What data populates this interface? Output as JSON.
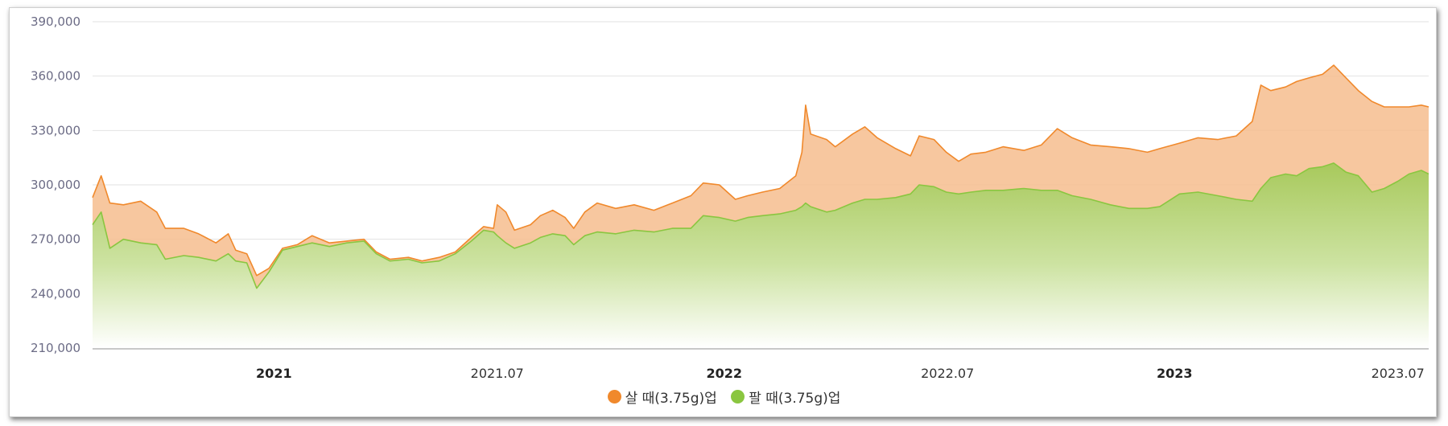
{
  "colors": {
    "buy": "#f0892c",
    "sell": "#8ac640",
    "grid": "#e2e2e2"
  },
  "legend": {
    "buy_label": "살 때(3.75g)업",
    "sell_label": "팔 때(3.75g)업"
  },
  "chart_data": {
    "type": "area",
    "ylim": [
      210000,
      390000
    ],
    "yticks": [
      "390,000",
      "360,000",
      "330,000",
      "300,000",
      "270,000",
      "240,000",
      "210,000"
    ],
    "ytick_values": [
      390000,
      360000,
      330000,
      300000,
      270000,
      240000,
      210000
    ],
    "xlim": [
      "2020-08-07",
      "2023-07-26"
    ],
    "xticks": [
      {
        "label": "2021",
        "date": "2021-01-01",
        "major": true
      },
      {
        "label": "2021.07",
        "date": "2021-07-01",
        "major": false
      },
      {
        "label": "2022",
        "date": "2022-01-01",
        "major": true
      },
      {
        "label": "2022.07",
        "date": "2022-07-01",
        "major": false
      },
      {
        "label": "2023",
        "date": "2023-01-01",
        "major": true
      },
      {
        "label": "2023.07",
        "date": "2023-07-01",
        "major": false
      }
    ],
    "grid": true,
    "legend_position": "bottom",
    "series": [
      {
        "name": "살 때(3.75g)업",
        "points": [
          [
            "2020-08-07",
            293000
          ],
          [
            "2020-08-14",
            305000
          ],
          [
            "2020-08-21",
            290000
          ],
          [
            "2020-09-01",
            289000
          ],
          [
            "2020-09-15",
            291000
          ],
          [
            "2020-09-28",
            285000
          ],
          [
            "2020-10-05",
            276000
          ],
          [
            "2020-10-20",
            276000
          ],
          [
            "2020-11-01",
            273000
          ],
          [
            "2020-11-15",
            268000
          ],
          [
            "2020-11-25",
            273000
          ],
          [
            "2020-12-01",
            264000
          ],
          [
            "2020-12-10",
            262000
          ],
          [
            "2020-12-18",
            250000
          ],
          [
            "2020-12-28",
            254000
          ],
          [
            "2021-01-08",
            265000
          ],
          [
            "2021-01-20",
            267000
          ],
          [
            "2021-02-01",
            272000
          ],
          [
            "2021-02-15",
            268000
          ],
          [
            "2021-03-01",
            269000
          ],
          [
            "2021-03-15",
            270000
          ],
          [
            "2021-03-25",
            263000
          ],
          [
            "2021-04-05",
            259000
          ],
          [
            "2021-04-20",
            260000
          ],
          [
            "2021-05-01",
            258000
          ],
          [
            "2021-05-15",
            260000
          ],
          [
            "2021-05-28",
            263000
          ],
          [
            "2021-06-10",
            271000
          ],
          [
            "2021-06-20",
            277000
          ],
          [
            "2021-06-28",
            276000
          ],
          [
            "2021-07-01",
            289000
          ],
          [
            "2021-07-08",
            285000
          ],
          [
            "2021-07-15",
            275000
          ],
          [
            "2021-07-28",
            278000
          ],
          [
            "2021-08-05",
            283000
          ],
          [
            "2021-08-15",
            286000
          ],
          [
            "2021-08-25",
            282000
          ],
          [
            "2021-09-01",
            276000
          ],
          [
            "2021-09-10",
            285000
          ],
          [
            "2021-09-20",
            290000
          ],
          [
            "2021-10-05",
            287000
          ],
          [
            "2021-10-20",
            289000
          ],
          [
            "2021-11-05",
            286000
          ],
          [
            "2021-11-20",
            290000
          ],
          [
            "2021-12-05",
            294000
          ],
          [
            "2021-12-15",
            301000
          ],
          [
            "2021-12-28",
            300000
          ],
          [
            "2022-01-10",
            292000
          ],
          [
            "2022-01-20",
            294000
          ],
          [
            "2022-02-01",
            296000
          ],
          [
            "2022-02-15",
            298000
          ],
          [
            "2022-02-28",
            305000
          ],
          [
            "2022-03-05",
            318000
          ],
          [
            "2022-03-08",
            344000
          ],
          [
            "2022-03-12",
            328000
          ],
          [
            "2022-03-25",
            325000
          ],
          [
            "2022-04-01",
            321000
          ],
          [
            "2022-04-15",
            328000
          ],
          [
            "2022-04-25",
            332000
          ],
          [
            "2022-05-05",
            326000
          ],
          [
            "2022-05-20",
            320000
          ],
          [
            "2022-06-01",
            316000
          ],
          [
            "2022-06-08",
            327000
          ],
          [
            "2022-06-20",
            325000
          ],
          [
            "2022-06-30",
            318000
          ],
          [
            "2022-07-10",
            313000
          ],
          [
            "2022-07-20",
            317000
          ],
          [
            "2022-08-01",
            318000
          ],
          [
            "2022-08-15",
            321000
          ],
          [
            "2022-09-01",
            319000
          ],
          [
            "2022-09-15",
            322000
          ],
          [
            "2022-09-28",
            331000
          ],
          [
            "2022-10-10",
            326000
          ],
          [
            "2022-10-25",
            322000
          ],
          [
            "2022-11-10",
            321000
          ],
          [
            "2022-11-25",
            320000
          ],
          [
            "2022-12-10",
            318000
          ],
          [
            "2022-12-20",
            320000
          ],
          [
            "2023-01-05",
            323000
          ],
          [
            "2023-01-20",
            326000
          ],
          [
            "2023-02-05",
            325000
          ],
          [
            "2023-02-20",
            327000
          ],
          [
            "2023-03-05",
            335000
          ],
          [
            "2023-03-12",
            355000
          ],
          [
            "2023-03-20",
            352000
          ],
          [
            "2023-04-01",
            354000
          ],
          [
            "2023-04-10",
            357000
          ],
          [
            "2023-04-20",
            359000
          ],
          [
            "2023-05-01",
            361000
          ],
          [
            "2023-05-10",
            366000
          ],
          [
            "2023-05-20",
            359000
          ],
          [
            "2023-05-30",
            352000
          ],
          [
            "2023-06-10",
            346000
          ],
          [
            "2023-06-20",
            343000
          ],
          [
            "2023-07-01",
            343000
          ],
          [
            "2023-07-10",
            343000
          ],
          [
            "2023-07-20",
            344000
          ],
          [
            "2023-07-26",
            343000
          ]
        ]
      },
      {
        "name": "팔 때(3.75g)업",
        "points": [
          [
            "2020-08-07",
            278000
          ],
          [
            "2020-08-14",
            285000
          ],
          [
            "2020-08-21",
            265000
          ],
          [
            "2020-09-01",
            270000
          ],
          [
            "2020-09-15",
            268000
          ],
          [
            "2020-09-28",
            267000
          ],
          [
            "2020-10-05",
            259000
          ],
          [
            "2020-10-20",
            261000
          ],
          [
            "2020-11-01",
            260000
          ],
          [
            "2020-11-15",
            258000
          ],
          [
            "2020-11-25",
            262000
          ],
          [
            "2020-12-01",
            258000
          ],
          [
            "2020-12-10",
            257000
          ],
          [
            "2020-12-18",
            243000
          ],
          [
            "2020-12-28",
            252000
          ],
          [
            "2021-01-08",
            264000
          ],
          [
            "2021-01-20",
            266000
          ],
          [
            "2021-02-01",
            268000
          ],
          [
            "2021-02-15",
            266000
          ],
          [
            "2021-03-01",
            268000
          ],
          [
            "2021-03-15",
            269000
          ],
          [
            "2021-03-25",
            262000
          ],
          [
            "2021-04-05",
            258000
          ],
          [
            "2021-04-20",
            259000
          ],
          [
            "2021-05-01",
            257000
          ],
          [
            "2021-05-15",
            258000
          ],
          [
            "2021-05-28",
            262000
          ],
          [
            "2021-06-10",
            269000
          ],
          [
            "2021-06-20",
            275000
          ],
          [
            "2021-06-28",
            274000
          ],
          [
            "2021-07-01",
            272000
          ],
          [
            "2021-07-08",
            268000
          ],
          [
            "2021-07-15",
            265000
          ],
          [
            "2021-07-28",
            268000
          ],
          [
            "2021-08-05",
            271000
          ],
          [
            "2021-08-15",
            273000
          ],
          [
            "2021-08-25",
            272000
          ],
          [
            "2021-09-01",
            267000
          ],
          [
            "2021-09-10",
            272000
          ],
          [
            "2021-09-20",
            274000
          ],
          [
            "2021-10-05",
            273000
          ],
          [
            "2021-10-20",
            275000
          ],
          [
            "2021-11-05",
            274000
          ],
          [
            "2021-11-20",
            276000
          ],
          [
            "2021-12-05",
            276000
          ],
          [
            "2021-12-15",
            283000
          ],
          [
            "2021-12-28",
            282000
          ],
          [
            "2022-01-10",
            280000
          ],
          [
            "2022-01-20",
            282000
          ],
          [
            "2022-02-01",
            283000
          ],
          [
            "2022-02-15",
            284000
          ],
          [
            "2022-02-28",
            286000
          ],
          [
            "2022-03-05",
            288000
          ],
          [
            "2022-03-08",
            290000
          ],
          [
            "2022-03-12",
            288000
          ],
          [
            "2022-03-25",
            285000
          ],
          [
            "2022-04-01",
            286000
          ],
          [
            "2022-04-15",
            290000
          ],
          [
            "2022-04-25",
            292000
          ],
          [
            "2022-05-05",
            292000
          ],
          [
            "2022-05-20",
            293000
          ],
          [
            "2022-06-01",
            295000
          ],
          [
            "2022-06-08",
            300000
          ],
          [
            "2022-06-20",
            299000
          ],
          [
            "2022-06-30",
            296000
          ],
          [
            "2022-07-10",
            295000
          ],
          [
            "2022-07-20",
            296000
          ],
          [
            "2022-08-01",
            297000
          ],
          [
            "2022-08-15",
            297000
          ],
          [
            "2022-09-01",
            298000
          ],
          [
            "2022-09-15",
            297000
          ],
          [
            "2022-09-28",
            297000
          ],
          [
            "2022-10-10",
            294000
          ],
          [
            "2022-10-25",
            292000
          ],
          [
            "2022-11-10",
            289000
          ],
          [
            "2022-11-25",
            287000
          ],
          [
            "2022-12-10",
            287000
          ],
          [
            "2022-12-20",
            288000
          ],
          [
            "2023-01-05",
            295000
          ],
          [
            "2023-01-20",
            296000
          ],
          [
            "2023-02-05",
            294000
          ],
          [
            "2023-02-20",
            292000
          ],
          [
            "2023-03-05",
            291000
          ],
          [
            "2023-03-12",
            298000
          ],
          [
            "2023-03-20",
            304000
          ],
          [
            "2023-04-01",
            306000
          ],
          [
            "2023-04-10",
            305000
          ],
          [
            "2023-04-20",
            309000
          ],
          [
            "2023-05-01",
            310000
          ],
          [
            "2023-05-10",
            312000
          ],
          [
            "2023-05-20",
            307000
          ],
          [
            "2023-05-30",
            305000
          ],
          [
            "2023-06-10",
            296000
          ],
          [
            "2023-06-20",
            298000
          ],
          [
            "2023-07-01",
            302000
          ],
          [
            "2023-07-10",
            306000
          ],
          [
            "2023-07-20",
            308000
          ],
          [
            "2023-07-26",
            306000
          ]
        ]
      }
    ]
  }
}
